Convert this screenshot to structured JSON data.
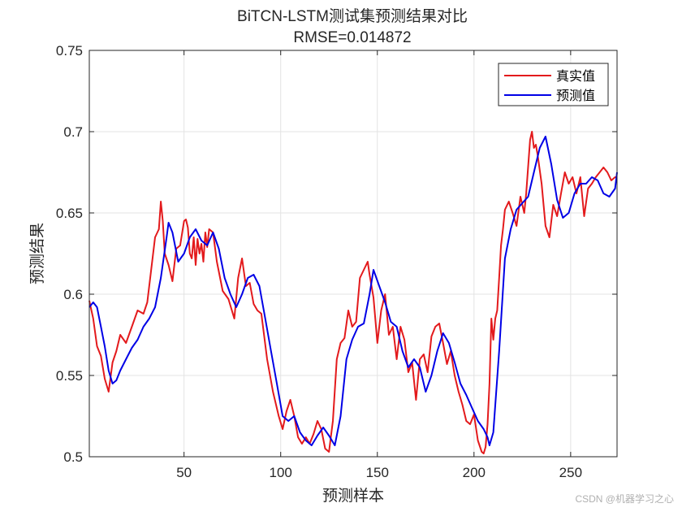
{
  "chart_data": {
    "type": "line",
    "title": "BiTCN-LSTM测试集预测结果对比",
    "subtitle": "RMSE=0.014872",
    "xlabel": "预测样本",
    "ylabel": "预测结果",
    "xlim": [
      1,
      274
    ],
    "ylim": [
      0.5,
      0.75
    ],
    "xticks": [
      50,
      100,
      150,
      200,
      250
    ],
    "yticks": [
      0.5,
      0.55,
      0.6,
      0.65,
      0.7,
      0.75
    ],
    "xtick_labels": [
      "50",
      "100",
      "150",
      "200",
      "250"
    ],
    "ytick_labels": [
      "0.5",
      "0.55",
      "0.6",
      "0.65",
      "0.7",
      "0.75"
    ],
    "grid": true,
    "legend_position": "top-right",
    "series": [
      {
        "name": "真实值",
        "color": "#e31a1c",
        "x": [
          1,
          3,
          5,
          7,
          9,
          11,
          13,
          15,
          17,
          20,
          23,
          26,
          29,
          31,
          33,
          35,
          37,
          38,
          39,
          40,
          42,
          44,
          46,
          48,
          50,
          51,
          52,
          53,
          54,
          55,
          56,
          57,
          58,
          59,
          60,
          61,
          62,
          63,
          65,
          67,
          70,
          73,
          76,
          78,
          80,
          82,
          84,
          86,
          88,
          90,
          93,
          96,
          99,
          101,
          103,
          105,
          107,
          109,
          111,
          113,
          115,
          117,
          119,
          121,
          123,
          125,
          127,
          129,
          131,
          133,
          135,
          137,
          139,
          141,
          143,
          145,
          146,
          148,
          150,
          152,
          154,
          156,
          158,
          160,
          162,
          164,
          166,
          168,
          170,
          172,
          174,
          176,
          178,
          180,
          182,
          184,
          186,
          188,
          190,
          192,
          194,
          196,
          198,
          200,
          202,
          204,
          205,
          206,
          207,
          208,
          209,
          210,
          211,
          212,
          213,
          214,
          215,
          216,
          218,
          220,
          222,
          224,
          226,
          227,
          229,
          230,
          231,
          232,
          233,
          235,
          237,
          239,
          241,
          243,
          245,
          247,
          249,
          251,
          253,
          255,
          257,
          259,
          261,
          263,
          265,
          267,
          269,
          271,
          273,
          274
        ],
        "y": [
          0.596,
          0.585,
          0.568,
          0.562,
          0.548,
          0.54,
          0.558,
          0.565,
          0.575,
          0.57,
          0.58,
          0.59,
          0.588,
          0.595,
          0.615,
          0.635,
          0.64,
          0.657,
          0.645,
          0.625,
          0.618,
          0.608,
          0.628,
          0.63,
          0.645,
          0.646,
          0.641,
          0.625,
          0.622,
          0.635,
          0.618,
          0.634,
          0.625,
          0.631,
          0.62,
          0.638,
          0.629,
          0.64,
          0.638,
          0.62,
          0.602,
          0.597,
          0.585,
          0.61,
          0.622,
          0.605,
          0.607,
          0.594,
          0.59,
          0.588,
          0.56,
          0.54,
          0.525,
          0.517,
          0.528,
          0.535,
          0.525,
          0.512,
          0.508,
          0.512,
          0.508,
          0.514,
          0.522,
          0.517,
          0.505,
          0.503,
          0.522,
          0.56,
          0.57,
          0.573,
          0.59,
          0.58,
          0.583,
          0.61,
          0.615,
          0.62,
          0.612,
          0.598,
          0.57,
          0.59,
          0.6,
          0.575,
          0.58,
          0.56,
          0.58,
          0.572,
          0.552,
          0.558,
          0.535,
          0.56,
          0.563,
          0.552,
          0.574,
          0.58,
          0.582,
          0.57,
          0.557,
          0.565,
          0.55,
          0.54,
          0.532,
          0.522,
          0.52,
          0.526,
          0.51,
          0.503,
          0.502,
          0.506,
          0.52,
          0.545,
          0.585,
          0.572,
          0.585,
          0.59,
          0.61,
          0.63,
          0.64,
          0.652,
          0.657,
          0.65,
          0.642,
          0.66,
          0.65,
          0.662,
          0.695,
          0.7,
          0.69,
          0.692,
          0.685,
          0.668,
          0.642,
          0.635,
          0.655,
          0.648,
          0.662,
          0.675,
          0.668,
          0.672,
          0.662,
          0.672,
          0.648,
          0.665,
          0.668,
          0.672,
          0.675,
          0.678,
          0.675,
          0.67,
          0.672,
          0.672
        ]
      },
      {
        "name": "预测值",
        "color": "#0000e6",
        "x": [
          1,
          3,
          5,
          7,
          9,
          11,
          13,
          15,
          17,
          20,
          23,
          26,
          29,
          32,
          35,
          38,
          41,
          42,
          44,
          47,
          50,
          53,
          56,
          59,
          62,
          65,
          68,
          71,
          74,
          77,
          80,
          83,
          86,
          89,
          92,
          95,
          98,
          101,
          104,
          107,
          110,
          113,
          116,
          119,
          122,
          125,
          128,
          131,
          134,
          137,
          140,
          143,
          146,
          148,
          151,
          154,
          157,
          160,
          163,
          166,
          169,
          172,
          175,
          178,
          181,
          184,
          187,
          190,
          193,
          196,
          199,
          202,
          205,
          207,
          208,
          210,
          213,
          216,
          219,
          222,
          225,
          228,
          231,
          234,
          237,
          240,
          243,
          246,
          249,
          252,
          255,
          258,
          261,
          264,
          267,
          270,
          273,
          274
        ],
        "y": [
          0.592,
          0.595,
          0.592,
          0.58,
          0.568,
          0.553,
          0.545,
          0.547,
          0.553,
          0.56,
          0.567,
          0.572,
          0.58,
          0.585,
          0.592,
          0.61,
          0.635,
          0.644,
          0.638,
          0.62,
          0.625,
          0.635,
          0.64,
          0.633,
          0.63,
          0.638,
          0.628,
          0.61,
          0.6,
          0.592,
          0.6,
          0.61,
          0.612,
          0.605,
          0.585,
          0.565,
          0.545,
          0.525,
          0.522,
          0.525,
          0.515,
          0.51,
          0.507,
          0.513,
          0.518,
          0.513,
          0.507,
          0.525,
          0.56,
          0.572,
          0.58,
          0.582,
          0.6,
          0.615,
          0.605,
          0.595,
          0.583,
          0.58,
          0.565,
          0.555,
          0.56,
          0.555,
          0.54,
          0.55,
          0.565,
          0.576,
          0.57,
          0.558,
          0.545,
          0.538,
          0.53,
          0.522,
          0.517,
          0.512,
          0.507,
          0.515,
          0.565,
          0.622,
          0.64,
          0.652,
          0.656,
          0.66,
          0.675,
          0.69,
          0.697,
          0.68,
          0.658,
          0.647,
          0.65,
          0.662,
          0.668,
          0.668,
          0.672,
          0.67,
          0.662,
          0.66,
          0.665,
          0.675
        ]
      }
    ]
  },
  "watermark": "CSDN @机器学习之心"
}
